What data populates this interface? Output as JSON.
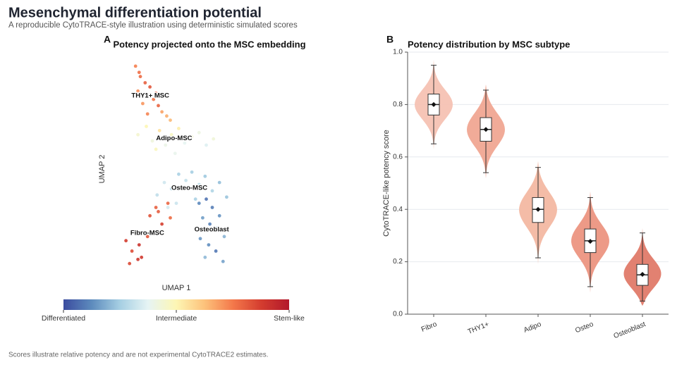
{
  "title": "Mesenchymal differentiation potential",
  "subtitle": "A reproducible CytoTRACE-style illustration using deterministic simulated scores",
  "footer": "Scores illustrate relative potency and are not experimental CytoTRACE2 estimates.",
  "chart_data": [
    {
      "type": "scatter",
      "panel": "A",
      "title": "Potency projected onto the MSC embedding",
      "xlabel": "UMAP 1",
      "ylabel": "UMAP 2",
      "xlim": [
        0,
        10
      ],
      "ylim": [
        0,
        10
      ],
      "series": [
        {
          "name": "THY1+ MSC",
          "x": [
            1.6,
            2.0,
            2.4,
            1.8,
            2.8,
            3.1,
            2.2,
            3.5,
            3.8,
            2.6,
            4.2,
            3.3,
            1.9,
            4.5
          ],
          "y": [
            9.8,
            9.3,
            9.0,
            8.6,
            8.8,
            8.2,
            8.0,
            7.9,
            7.6,
            7.5,
            7.4,
            8.5,
            9.5,
            7.2
          ],
          "values": [
            0.74,
            0.78,
            0.8,
            0.72,
            0.82,
            0.76,
            0.7,
            0.79,
            0.68,
            0.73,
            0.66,
            0.81,
            0.77,
            0.64
          ]
        },
        {
          "name": "Adipo-MSC",
          "x": [
            1.8,
            2.5,
            3.0,
            3.6,
            4.1,
            4.6,
            5.2,
            5.7,
            6.3,
            6.9,
            7.5,
            8.1,
            4.9,
            3.3
          ],
          "y": [
            6.5,
            6.9,
            6.2,
            6.7,
            6.0,
            6.5,
            6.8,
            6.1,
            6.4,
            6.6,
            6.0,
            6.3,
            5.6,
            5.8
          ],
          "values": [
            0.45,
            0.5,
            0.42,
            0.55,
            0.4,
            0.47,
            0.52,
            0.38,
            0.44,
            0.41,
            0.36,
            0.43,
            0.39,
            0.48
          ]
        },
        {
          "name": "Osteo-MSC",
          "x": [
            3.4,
            4.0,
            4.6,
            5.2,
            5.8,
            6.3,
            6.9,
            7.4,
            8.0,
            8.6,
            9.2,
            5.0,
            6.6,
            4.3
          ],
          "y": [
            3.6,
            4.2,
            3.9,
            4.6,
            4.3,
            4.7,
            4.1,
            4.5,
            3.8,
            4.2,
            3.5,
            3.2,
            3.4,
            3.0
          ],
          "values": [
            0.3,
            0.33,
            0.28,
            0.26,
            0.31,
            0.25,
            0.29,
            0.24,
            0.27,
            0.22,
            0.23,
            0.32,
            0.26,
            0.34
          ]
        },
        {
          "name": "Osteoblast",
          "x": [
            6.9,
            7.5,
            8.0,
            8.6,
            7.2,
            7.8,
            8.4,
            9.0,
            7.0,
            7.7,
            8.3,
            8.9,
            7.4,
            8.6
          ],
          "y": [
            3.2,
            3.4,
            3.0,
            2.6,
            2.5,
            2.2,
            2.0,
            1.6,
            1.5,
            1.2,
            0.9,
            0.4,
            0.6,
            1.9
          ],
          "values": [
            0.12,
            0.08,
            0.1,
            0.14,
            0.16,
            0.11,
            0.18,
            0.2,
            0.15,
            0.13,
            0.09,
            0.17,
            0.21,
            0.12
          ]
        },
        {
          "name": "Fibro-MSC",
          "x": [
            0.8,
            1.3,
            1.8,
            2.3,
            2.8,
            3.3,
            3.8,
            4.3,
            1.1,
            1.9,
            2.6,
            3.5,
            4.5,
            2.1
          ],
          "y": [
            1.4,
            0.9,
            0.5,
            1.8,
            2.6,
            3.0,
            2.2,
            3.2,
            0.3,
            1.2,
            1.6,
            2.8,
            2.5,
            0.6
          ],
          "values": [
            0.88,
            0.84,
            0.9,
            0.86,
            0.83,
            0.8,
            0.87,
            0.79,
            0.85,
            0.91,
            0.82,
            0.81,
            0.78,
            0.89
          ]
        }
      ],
      "colorbar": {
        "clim": [
          0,
          1
        ],
        "ticks": [
          {
            "value": 0,
            "label": "Differentiated"
          },
          {
            "value": 0.5,
            "label": "Intermediate"
          },
          {
            "value": 1,
            "label": "Stem-like"
          }
        ]
      }
    },
    {
      "type": "violin",
      "panel": "B",
      "title": "Potency distribution by MSC subtype",
      "ylabel": "CytoTRACE-like potency score",
      "categories": [
        "Fibro",
        "THY1+",
        "Adipo",
        "Osteo",
        "Osteoblast"
      ],
      "colors": [
        "#f5c2b3",
        "#f0a792",
        "#f3b8a2",
        "#ec9581",
        "#e07a69"
      ],
      "min": [
        0.65,
        0.54,
        0.215,
        0.105,
        0.05
      ],
      "q1": [
        0.76,
        0.66,
        0.35,
        0.235,
        0.11
      ],
      "median": [
        0.8,
        0.705,
        0.4,
        0.28,
        0.15
      ],
      "q3": [
        0.84,
        0.75,
        0.445,
        0.325,
        0.19
      ],
      "max": [
        0.95,
        0.855,
        0.56,
        0.445,
        0.31
      ],
      "mean": [
        0.8,
        0.705,
        0.4,
        0.278,
        0.152
      ],
      "ylim": [
        0,
        1
      ],
      "yticks": [
        {
          "value": 0,
          "label": "0.0"
        },
        0.2,
        0.4,
        0.6,
        0.8,
        {
          "value": 1,
          "label": "1.0"
        }
      ],
      "grid": true
    }
  ]
}
